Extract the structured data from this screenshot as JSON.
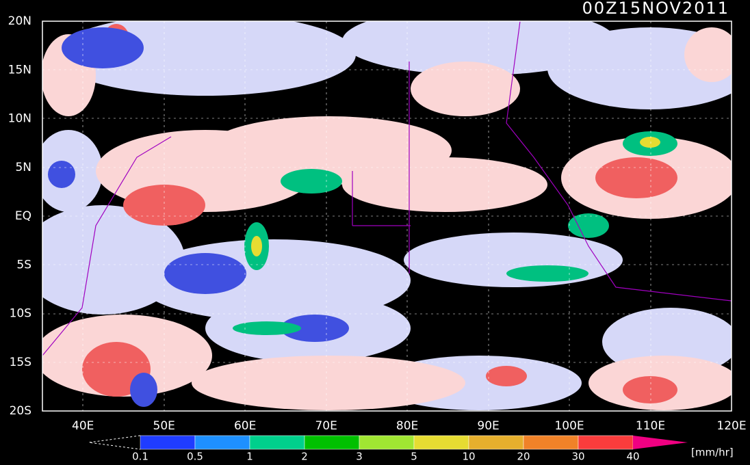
{
  "title": "00Z15NOV2011",
  "lat_labels": [
    "20N",
    "15N",
    "10N",
    "5N",
    "EQ",
    "5S",
    "10S",
    "15S",
    "20S"
  ],
  "lon_labels": [
    "40E",
    "50E",
    "60E",
    "70E",
    "80E",
    "90E",
    "100E",
    "110E",
    "120E"
  ],
  "colorbar": {
    "labels": [
      "0.1",
      "0.5",
      "1",
      "2",
      "3",
      "5",
      "10",
      "20",
      "30",
      "40"
    ],
    "colors": [
      "#1f3cff",
      "#1e90ff",
      "#00d08c",
      "#00c000",
      "#a0e632",
      "#e6dc32",
      "#e6af2d",
      "#f08228",
      "#fa3c3c",
      "#f00082"
    ],
    "unit": "[mm/hr]"
  }
}
